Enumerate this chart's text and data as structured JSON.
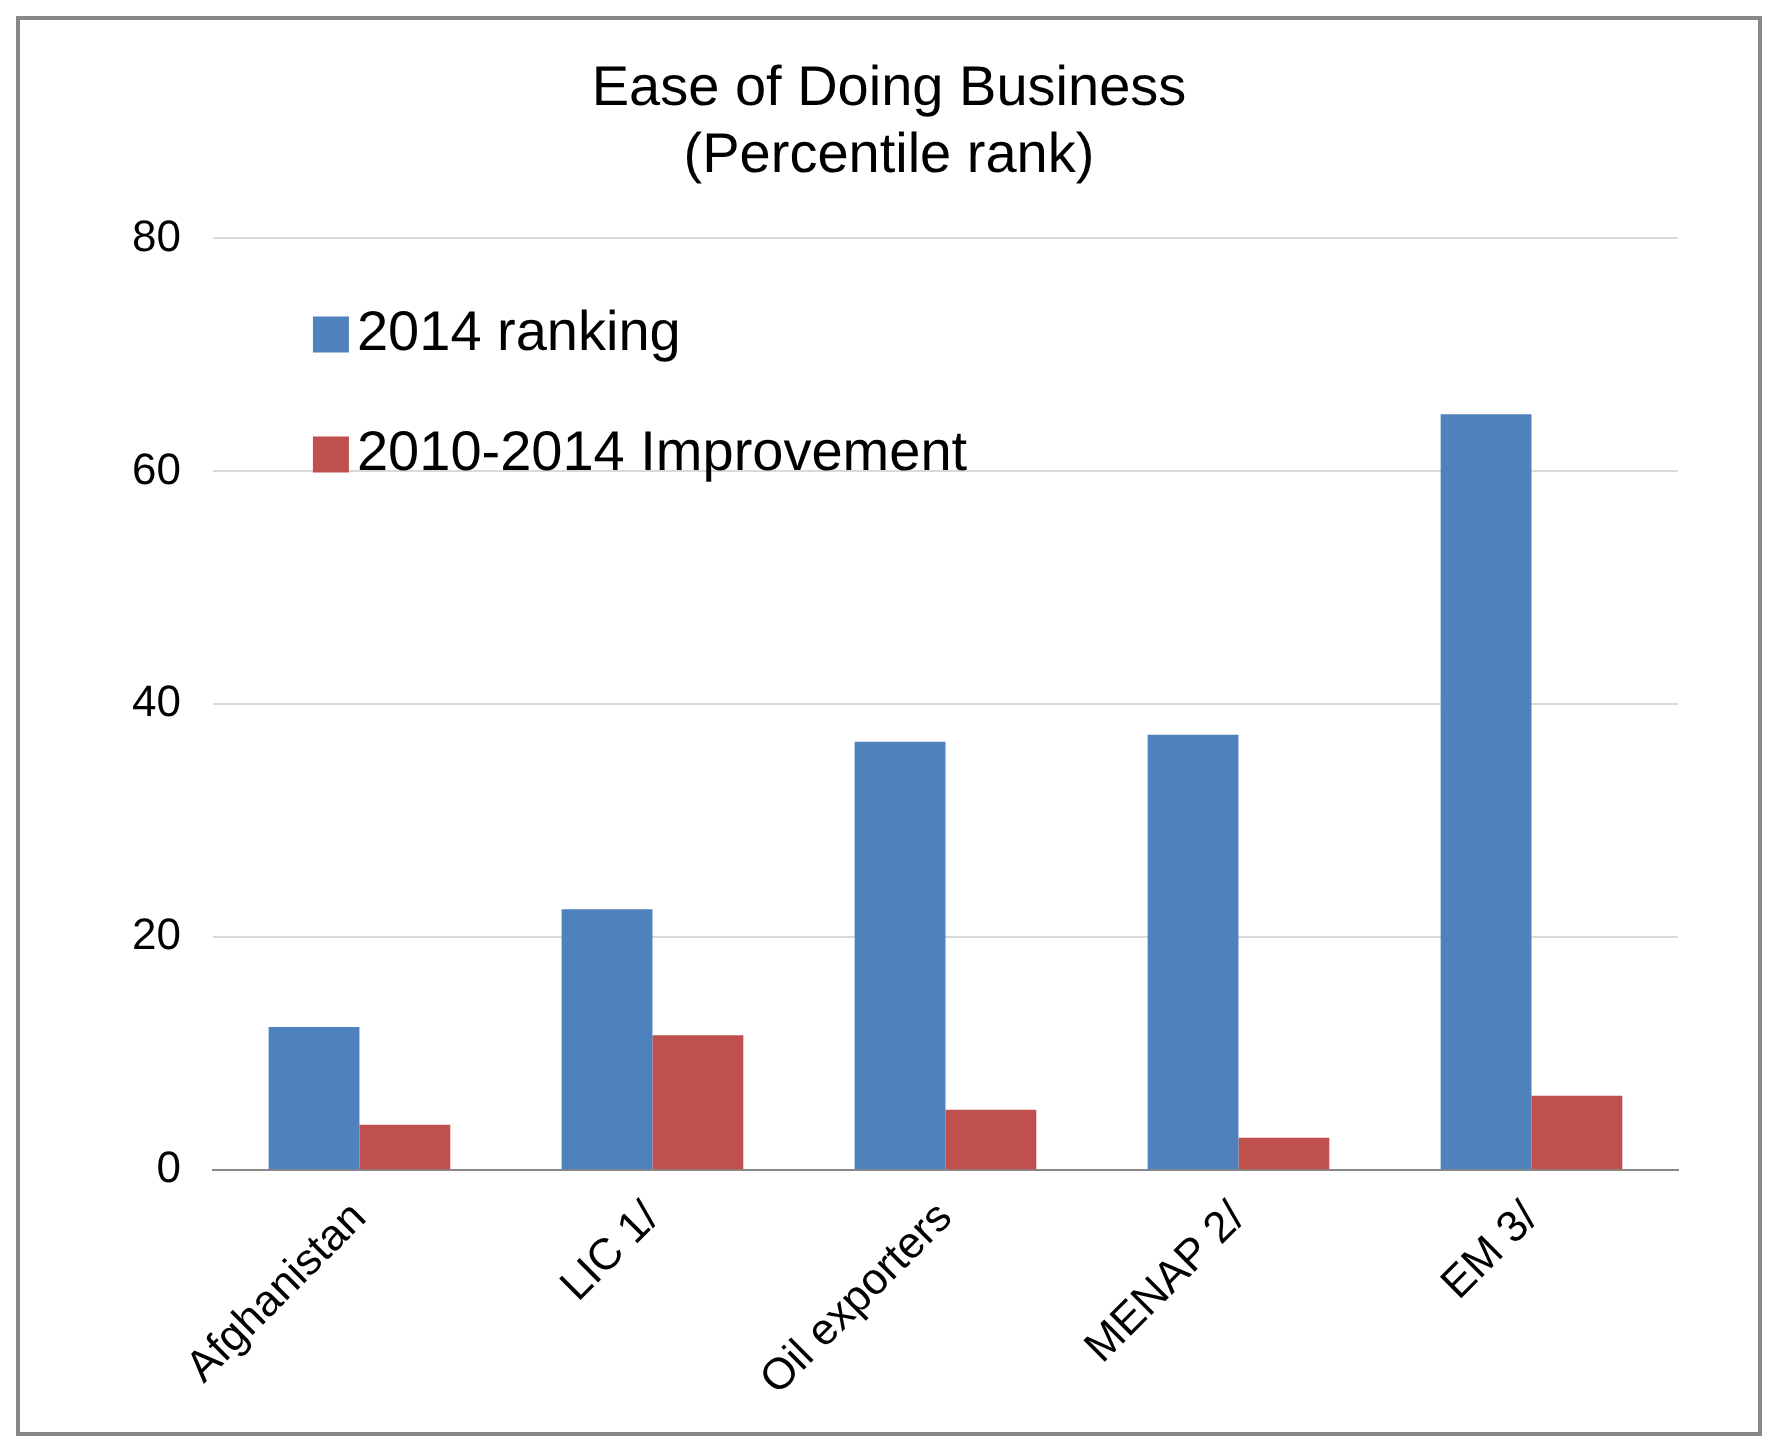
{
  "chart_data": {
    "type": "bar",
    "title": "Ease of Doing Business\n(Percentile rank)",
    "categories": [
      "Afghanistan",
      "LIC 1/",
      "Oil exporters",
      "MENAP 2/",
      "EM 3/"
    ],
    "series": [
      {
        "name": "2014 ranking",
        "color": "#4f81bd",
        "values": [
          12.3,
          22.4,
          36.8,
          37.4,
          64.9
        ]
      },
      {
        "name": "2010-2014 Improvement",
        "color": "#c0504d",
        "values": [
          3.9,
          11.6,
          5.2,
          2.8,
          6.4
        ]
      }
    ],
    "ylim": [
      0,
      80
    ],
    "yticks": [
      0,
      20,
      40,
      60,
      80
    ],
    "grid": "y",
    "legend": "top left"
  }
}
